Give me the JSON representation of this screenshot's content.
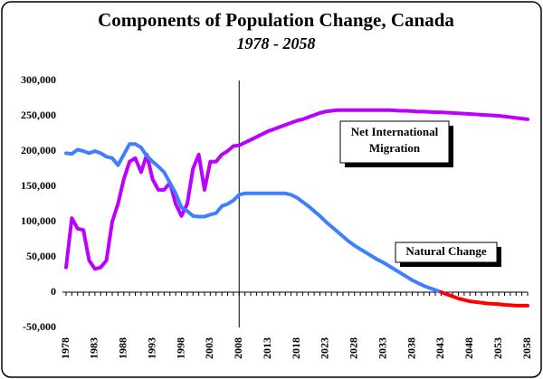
{
  "chart_data": {
    "type": "line",
    "title": "Components of Population Change, Canada",
    "subtitle": "1978 - 2058",
    "x": [
      1978,
      1979,
      1980,
      1981,
      1982,
      1983,
      1984,
      1985,
      1986,
      1987,
      1988,
      1989,
      1990,
      1991,
      1992,
      1993,
      1994,
      1995,
      1996,
      1997,
      1998,
      1999,
      2000,
      2001,
      2002,
      2003,
      2004,
      2005,
      2006,
      2007,
      2008,
      2009,
      2010,
      2011,
      2012,
      2013,
      2014,
      2015,
      2016,
      2017,
      2018,
      2019,
      2020,
      2021,
      2022,
      2023,
      2024,
      2025,
      2026,
      2027,
      2028,
      2029,
      2030,
      2031,
      2032,
      2033,
      2034,
      2035,
      2036,
      2037,
      2038,
      2039,
      2040,
      2041,
      2042,
      2043,
      2044,
      2045,
      2046,
      2047,
      2048,
      2049,
      2050,
      2051,
      2052,
      2053,
      2054,
      2055,
      2056,
      2057,
      2058
    ],
    "series": [
      {
        "name": "Net International Migration",
        "color": "#bb00ff",
        "values": [
          35000,
          105000,
          90000,
          88000,
          45000,
          33000,
          35000,
          45000,
          100000,
          125000,
          160000,
          185000,
          190000,
          170000,
          195000,
          160000,
          145000,
          145000,
          155000,
          125000,
          108000,
          125000,
          175000,
          195000,
          145000,
          185000,
          185000,
          195000,
          200000,
          207000,
          208000,
          212000,
          216000,
          220000,
          224000,
          228000,
          231000,
          234000,
          237000,
          240000,
          243000,
          245000,
          248000,
          251000,
          254000,
          256000,
          257000,
          258000,
          258000,
          258000,
          258000,
          258000,
          258000,
          258000,
          258000,
          258000,
          258000,
          257500,
          257000,
          257000,
          256500,
          256000,
          256000,
          255500,
          255000,
          255000,
          254500,
          254000,
          253500,
          253000,
          252500,
          252000,
          251500,
          251000,
          250500,
          250000,
          249000,
          248000,
          247000,
          246000,
          245000
        ]
      },
      {
        "name": "Natural Change",
        "color": "#3f7fff",
        "negative_color": "#ff0000",
        "values": [
          197000,
          196000,
          202000,
          200000,
          197000,
          200000,
          197000,
          192000,
          190000,
          180000,
          195000,
          210000,
          210000,
          205000,
          193000,
          185000,
          178000,
          170000,
          155000,
          140000,
          120000,
          115000,
          108000,
          107000,
          107000,
          110000,
          112000,
          122000,
          125000,
          130000,
          138000,
          140000,
          140000,
          140000,
          140000,
          140000,
          140000,
          140000,
          140000,
          138000,
          134000,
          128000,
          122000,
          115000,
          108000,
          100000,
          93000,
          86000,
          79000,
          72000,
          66000,
          61000,
          56000,
          51000,
          46000,
          42000,
          37000,
          32000,
          27000,
          22000,
          17000,
          13000,
          9000,
          6000,
          3000,
          0,
          -3000,
          -6000,
          -9000,
          -11000,
          -13000,
          -14000,
          -15000,
          -16000,
          -16500,
          -17000,
          -18000,
          -18500,
          -19000,
          -19000,
          -19000
        ]
      }
    ],
    "xlim": [
      1978,
      2058
    ],
    "xticks": [
      1978,
      1983,
      1988,
      1993,
      1998,
      2003,
      2008,
      2013,
      2018,
      2023,
      2028,
      2033,
      2038,
      2043,
      2048,
      2053,
      2058
    ],
    "ylim": [
      -50000,
      300000
    ],
    "yticks": [
      {
        "value": -50000,
        "label": "-50,000"
      },
      0,
      {
        "value": 50000,
        "label": "50,000"
      },
      {
        "value": 100000,
        "label": "100,000"
      },
      {
        "value": 150000,
        "label": "150,000"
      },
      {
        "value": 200000,
        "label": "200,000"
      },
      {
        "value": 250000,
        "label": "250,000"
      },
      {
        "value": 300000,
        "label": "300,000"
      }
    ],
    "vline": 2008,
    "grid": false
  }
}
